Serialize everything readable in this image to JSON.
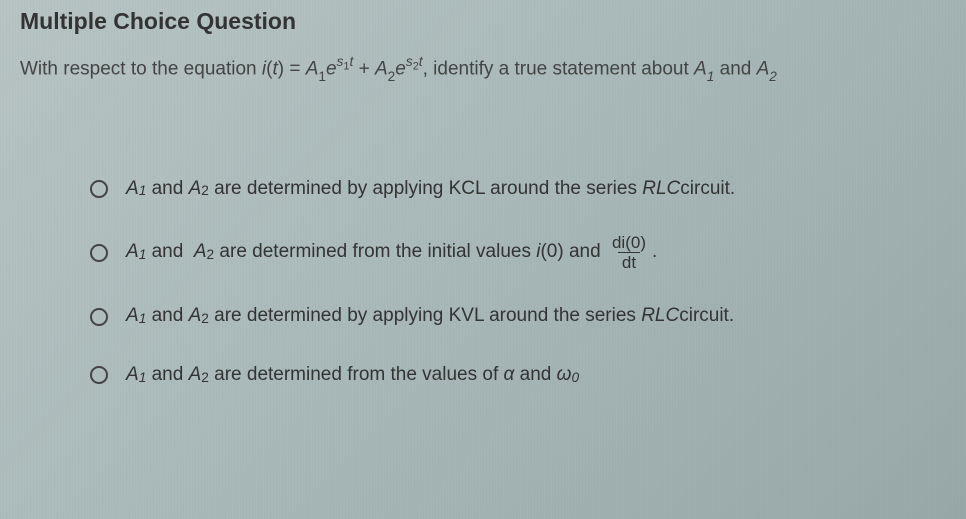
{
  "heading": "Multiple Choice Question",
  "prompt": {
    "prefix": "With respect to the equation ",
    "eq_i": "i",
    "eq_t_open": "(",
    "eq_t": "t",
    "eq_t_close": ") = ",
    "A1": "A",
    "sub1": "1",
    "e1": "e",
    "s1": "s",
    "s1sub": "1",
    "t1": "t",
    "plus": " + ",
    "A2": "A",
    "sub2": "2",
    "e2": "e",
    "s2": "s",
    "s2sub": "2",
    "t2": "t",
    "suffix": ", identify a true statement about ",
    "eA1": "A",
    "esub1": "1",
    "and": " and ",
    "eA2": "A",
    "esub2": "2"
  },
  "options": {
    "a": {
      "p1": "A",
      "s1": "1",
      "p2": " and ",
      "p3": "A",
      "s2": "2",
      "p4": " are determined by applying KCL around the series ",
      "rlc": "RLC",
      "p5": " circuit."
    },
    "b": {
      "p1": "A",
      "s1": "1",
      "p2": " and  ",
      "p3": "A",
      "s2": "2",
      "p4": " are determined from the initial values ",
      "i": "i",
      "zero": "(0) and ",
      "num": "di(0)",
      "den": "dt",
      "period": "."
    },
    "c": {
      "p1": "A",
      "s1": "1",
      "p2": " and ",
      "p3": "A",
      "s2": "2",
      "p4": " are determined by applying KVL around the series ",
      "rlc": "RLC",
      "p5": " circuit."
    },
    "d": {
      "p1": "A",
      "s1": "1",
      "p2": " and ",
      "p3": "A",
      "s2": "2",
      "p4": " are determined from the values of ",
      "alpha": "α",
      "and": " and ",
      "omega": "ω",
      "osub": "0"
    }
  },
  "colors": {
    "bg_start": "#b8c4c4",
    "bg_end": "#98a8a8",
    "text": "#333333",
    "radio_border": "#444444",
    "frac_border": "#333333"
  },
  "typography": {
    "heading_fontsize": 23,
    "body_fontsize": 19,
    "sub_scale": 0.72
  }
}
